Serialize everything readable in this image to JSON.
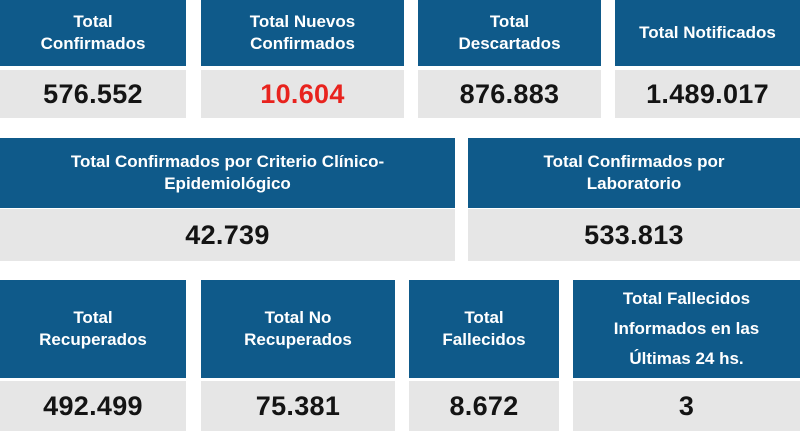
{
  "row1": [
    {
      "label": "Total\nConfirmados",
      "value": "576.552"
    },
    {
      "label": "Total Nuevos\nConfirmados",
      "value": "10.604"
    },
    {
      "label": "Total\nDescartados",
      "value": "876.883"
    },
    {
      "label": "Total Notificados",
      "value": "1.489.017"
    }
  ],
  "row2": [
    {
      "label": "Total Confirmados por Criterio Clínico-\nEpidemiológico",
      "value": "42.739"
    },
    {
      "label": "Total Confirmados por\nLaboratorio",
      "value": "533.813"
    }
  ],
  "row3": [
    {
      "label": "Total\nRecuperados",
      "value": "492.499"
    },
    {
      "label": "Total No\nRecuperados",
      "value": "75.381"
    },
    {
      "label": "Total\nFallecidos",
      "value": "8.672"
    },
    {
      "label": "Total Fallecidos\nInformados en las\nÚltimas 24 hs.",
      "value": "3"
    }
  ],
  "colors": {
    "header": "#0f5a8a",
    "value_bg": "#e6e6e6",
    "highlight": "#e8231e"
  }
}
